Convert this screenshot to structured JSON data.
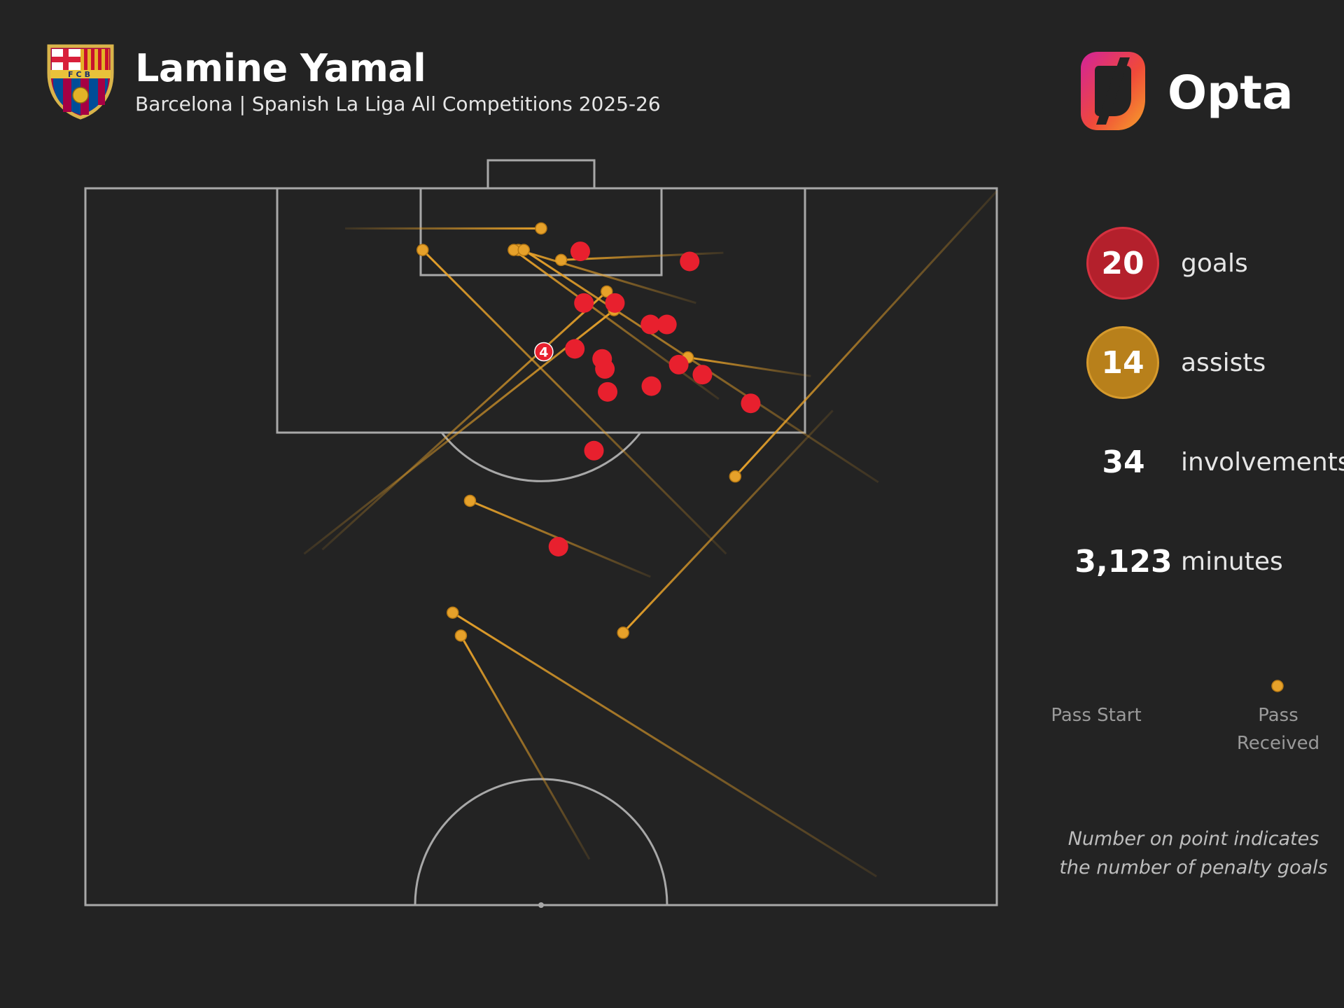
{
  "header": {
    "player_name": "Lamine Yamal",
    "subtitle": "Barcelona | Spanish La Liga All Competitions 2025-26",
    "crest_lettering": "FCB",
    "brand": "Opta"
  },
  "stats": {
    "goals": {
      "value": "20",
      "label": "goals",
      "color": "#b4202c"
    },
    "assists": {
      "value": "14",
      "label": "assists",
      "color": "#b8801b"
    },
    "involvements": {
      "value": "34",
      "label": "involvements"
    },
    "minutes": {
      "value": "3,123",
      "label": "minutes"
    }
  },
  "legend": {
    "start_label": "Pass Start",
    "end_label": "Pass Received"
  },
  "footnote": "Number on point indicates the number of penalty goals",
  "colors": {
    "background": "#232323",
    "pitch_lines": "#a8a8a8",
    "goal_marker": "#e8202e",
    "assist_line": "#e6a12a"
  },
  "chart_data": {
    "type": "scatter",
    "pitch": "half-pitch, attacking upward, opponent goal at top",
    "coordinate_units": "pitch length percent (x: 0 = left touchline, 100 = right touchline; y: 0 = opponent goal line, 50 = halfway line)",
    "goals": [
      {
        "x": 54.3,
        "y": 4.4
      },
      {
        "x": 66.3,
        "y": 5.1
      },
      {
        "x": 54.7,
        "y": 8.0
      },
      {
        "x": 58.1,
        "y": 8.0
      },
      {
        "x": 62.0,
        "y": 9.5
      },
      {
        "x": 63.8,
        "y": 9.5
      },
      {
        "x": 50.3,
        "y": 11.4,
        "penalty_goals": 4,
        "label": "4"
      },
      {
        "x": 53.7,
        "y": 11.2
      },
      {
        "x": 56.7,
        "y": 11.9
      },
      {
        "x": 57.0,
        "y": 12.6
      },
      {
        "x": 65.1,
        "y": 12.3
      },
      {
        "x": 67.7,
        "y": 13.0
      },
      {
        "x": 57.3,
        "y": 14.2
      },
      {
        "x": 62.1,
        "y": 13.8
      },
      {
        "x": 73.0,
        "y": 15.0
      },
      {
        "x": 55.8,
        "y": 18.3
      },
      {
        "x": 51.9,
        "y": 25.0
      }
    ],
    "assists": [
      {
        "start": {
          "x": 28.5,
          "y": 2.8
        },
        "received": {
          "x": 50.0,
          "y": 2.8
        }
      },
      {
        "start": {
          "x": 70.0,
          "y": 4.5
        },
        "received": {
          "x": 52.2,
          "y": 5.0
        }
      },
      {
        "start": {
          "x": 67.0,
          "y": 8.0
        },
        "received": {
          "x": 47.5,
          "y": 4.3
        }
      },
      {
        "start": {
          "x": 69.5,
          "y": 14.7
        },
        "received": {
          "x": 47.0,
          "y": 4.3
        }
      },
      {
        "start": {
          "x": 87.0,
          "y": 20.5
        },
        "received": {
          "x": 48.1,
          "y": 4.3
        }
      },
      {
        "start": {
          "x": 70.3,
          "y": 25.5
        },
        "received": {
          "x": 37.0,
          "y": 4.3
        }
      },
      {
        "start": {
          "x": 79.6,
          "y": 13.1
        },
        "received": {
          "x": 66.1,
          "y": 11.8
        }
      },
      {
        "start": {
          "x": 26.0,
          "y": 25.2
        },
        "received": {
          "x": 57.2,
          "y": 7.2
        }
      },
      {
        "start": {
          "x": 24.0,
          "y": 25.5
        },
        "received": {
          "x": 58.0,
          "y": 8.5
        }
      },
      {
        "start": {
          "x": 100.0,
          "y": 0.2
        },
        "received": {
          "x": 71.3,
          "y": 20.1
        }
      },
      {
        "start": {
          "x": 82.0,
          "y": 15.5
        },
        "received": {
          "x": 59.0,
          "y": 31.0
        }
      },
      {
        "start": {
          "x": 62.0,
          "y": 27.1
        },
        "received": {
          "x": 42.2,
          "y": 21.8
        }
      },
      {
        "start": {
          "x": 86.8,
          "y": 48.0
        },
        "received": {
          "x": 40.3,
          "y": 29.6
        }
      },
      {
        "start": {
          "x": 55.3,
          "y": 46.8
        },
        "received": {
          "x": 41.2,
          "y": 31.2
        }
      }
    ]
  }
}
